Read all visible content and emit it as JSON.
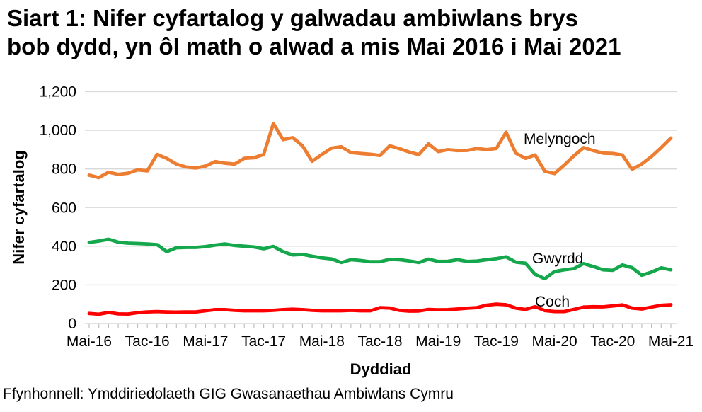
{
  "header": {
    "title_lines": [
      "Siart 1: Nifer cyfartalog y galwadau ambiwlans brys",
      "bob dydd, yn ôl math o alwad a mis Mai 2016 i Mai 2021"
    ]
  },
  "footer": {
    "source": "Ffynhonnell: Ymddiriedolaeth GIG Gwasanaethau Ambiwlans Cymru"
  },
  "chart_data": {
    "type": "line",
    "title": "Siart 1: Nifer cyfartalog y galwadau ambiwlans brys bob dydd, yn ôl math o alwad a mis Mai 2016 i Mai 2021",
    "xlabel": "Dyddiad",
    "ylabel": "Nifer cyfartalog",
    "ylim": [
      0,
      1200
    ],
    "y_ticks": [
      0,
      200,
      400,
      600,
      800,
      1000,
      1200
    ],
    "y_tick_labels": [
      "0",
      "200",
      "400",
      "600",
      "800",
      "1,000",
      "1,200"
    ],
    "x_tick_labels": [
      "Mai-16",
      "Tac-16",
      "Mai-17",
      "Tac-17",
      "Mai-18",
      "Tac-18",
      "Mai-19",
      "Tac-19",
      "Mai-20",
      "Tac-20",
      "Mai-21"
    ],
    "x_range_months": 61,
    "grid": "horizontal",
    "legend_position": "inline-labels",
    "series": [
      {
        "name": "Melyngoch",
        "color": "#ED7D31",
        "values": [
          768,
          755,
          783,
          772,
          778,
          795,
          790,
          875,
          855,
          825,
          810,
          805,
          815,
          838,
          830,
          825,
          855,
          858,
          875,
          1035,
          952,
          962,
          920,
          840,
          875,
          908,
          915,
          885,
          880,
          876,
          870,
          920,
          905,
          888,
          874,
          930,
          890,
          900,
          895,
          896,
          906,
          900,
          906,
          990,
          882,
          855,
          872,
          788,
          776,
          820,
          868,
          910,
          895,
          882,
          880,
          872,
          798,
          826,
          864,
          910,
          960
        ]
      },
      {
        "name": "Gwyrdd",
        "color": "#14A74B",
        "values": [
          420,
          427,
          436,
          421,
          416,
          414,
          412,
          408,
          372,
          392,
          394,
          394,
          398,
          406,
          412,
          404,
          400,
          396,
          387,
          399,
          372,
          355,
          358,
          348,
          340,
          334,
          316,
          330,
          326,
          320,
          320,
          332,
          330,
          324,
          316,
          333,
          321,
          322,
          330,
          321,
          323,
          330,
          336,
          345,
          318,
          312,
          254,
          232,
          269,
          278,
          284,
          310,
          295,
          278,
          275,
          303,
          289,
          250,
          266,
          288,
          278
        ]
      },
      {
        "name": "Coch",
        "color": "#FF0000",
        "values": [
          52,
          48,
          57,
          50,
          49,
          56,
          60,
          62,
          60,
          59,
          60,
          60,
          66,
          72,
          72,
          68,
          66,
          66,
          66,
          68,
          72,
          74,
          72,
          68,
          66,
          66,
          66,
          68,
          66,
          66,
          82,
          80,
          68,
          64,
          65,
          73,
          71,
          72,
          75,
          79,
          82,
          95,
          100,
          97,
          80,
          73,
          87,
          67,
          62,
          62,
          73,
          85,
          87,
          86,
          91,
          96,
          80,
          75,
          85,
          94,
          97
        ]
      }
    ]
  }
}
